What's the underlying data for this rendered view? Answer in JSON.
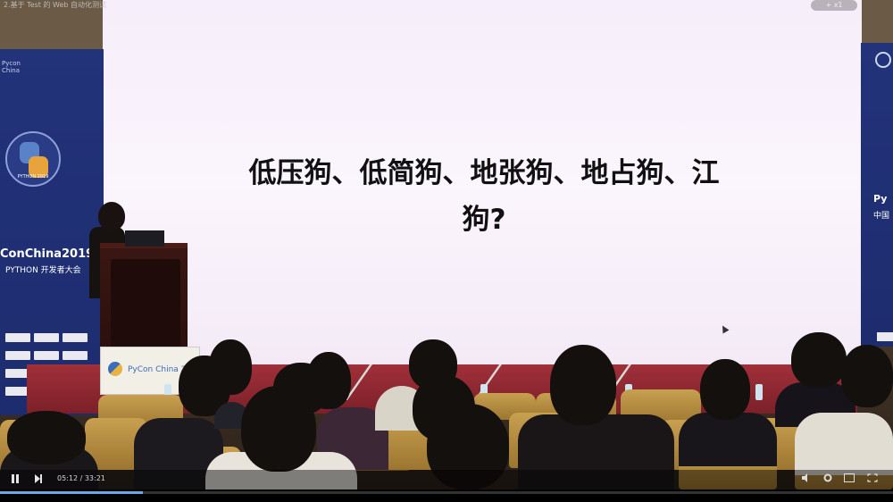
{
  "video": {
    "title": "2.基于 Test 的 Web 自动化测试",
    "top_right_badge": "+ x1",
    "time_display": "05:12 / 33:21",
    "progress_fraction": 0.16
  },
  "slide": {
    "line1": "低压狗、低简狗、地张狗、地占狗、江",
    "line2": "狗?"
  },
  "banner_left": {
    "tag": "Pycon China",
    "conference": "ConChina2019",
    "subtitle": "PYTHON 开发者大会",
    "logo_year": "PYTHON 2019"
  },
  "banner_right": {
    "text": "Py",
    "subtext": "中国"
  },
  "podium_sign": {
    "text": "PyCon China 2"
  },
  "controls": {
    "play_icon": "pause-icon",
    "next_icon": "next-icon",
    "volume_icon": "volume-icon",
    "settings_icon": "gear-icon",
    "fullscreen_icon": "fullscreen-icon"
  },
  "colors": {
    "banner": "#23337a",
    "screen": "#f8f1fb",
    "stage": "#a0303a",
    "chair": "#b48a40",
    "progress": "#6aa6e8"
  }
}
